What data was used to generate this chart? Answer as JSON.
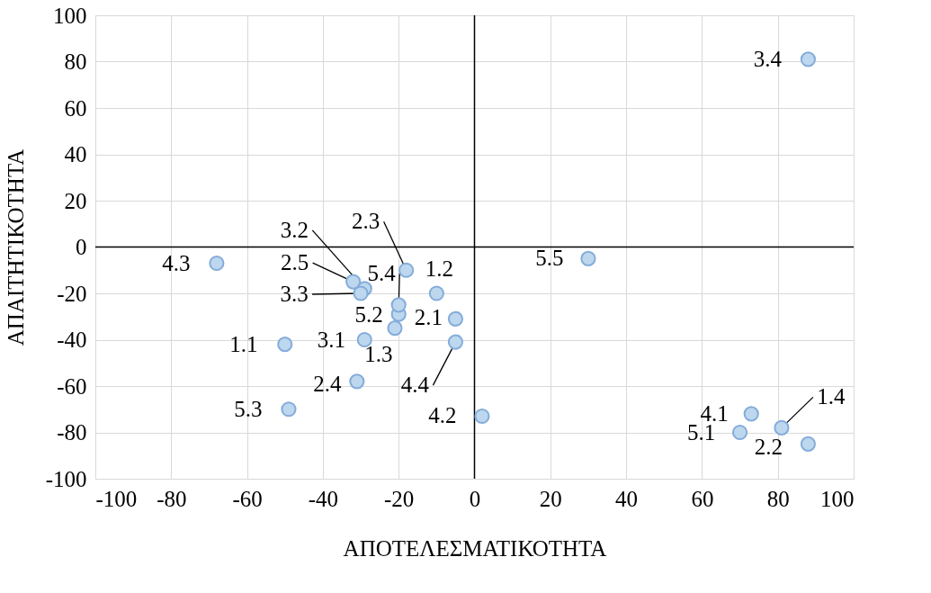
{
  "chart_data": {
    "type": "scatter",
    "xlabel": "ΑΠΟΤΕΛΕΣΜΑΤΙΚΟΤΗΤΑ",
    "ylabel": "ΑΠΑΙΤΗΤΙΚΟΤΗΤΑ",
    "xlim": [
      -100,
      100
    ],
    "xticks": [
      -100,
      -80,
      -60,
      -40,
      -20,
      0,
      20,
      40,
      60,
      80,
      100
    ],
    "ylim": [
      -100,
      100
    ],
    "yticks": [
      -100,
      -80,
      -60,
      -40,
      -20,
      0,
      20,
      40,
      60,
      80,
      100
    ],
    "grid": true,
    "marker": "circle",
    "series": [
      {
        "color": "#bdd7ee",
        "x": [
          -50,
          -10,
          -21,
          81,
          -5,
          88,
          -18,
          -31,
          -32,
          -29,
          -29,
          -30,
          88,
          73,
          2,
          -68,
          -5,
          70,
          -20,
          -49,
          -20,
          30
        ],
        "values": [
          -42,
          -20,
          -35,
          -78,
          -31,
          -85,
          -10,
          -58,
          -15,
          -40,
          -18,
          -20,
          81,
          -72,
          -73,
          -7,
          -41,
          -80,
          -29,
          -70,
          -25,
          -5
        ]
      }
    ],
    "annotations": [
      {
        "text": "1.1",
        "x": -50,
        "y": -42
      },
      {
        "text": "1.2",
        "x": -10,
        "y": -20
      },
      {
        "text": "1.3",
        "x": -21,
        "y": -35
      },
      {
        "text": "1.4",
        "x": 81,
        "y": -78
      },
      {
        "text": "2.1",
        "x": -5,
        "y": -31
      },
      {
        "text": "2.2",
        "x": 88,
        "y": -85
      },
      {
        "text": "2.3",
        "x": -18,
        "y": -10
      },
      {
        "text": "2.4",
        "x": -31,
        "y": -58
      },
      {
        "text": "2.5",
        "x": -32,
        "y": -15
      },
      {
        "text": "3.1",
        "x": -29,
        "y": -40
      },
      {
        "text": "3.2",
        "x": -29,
        "y": -18
      },
      {
        "text": "3.3",
        "x": -30,
        "y": -20
      },
      {
        "text": "3.4",
        "x": 88,
        "y": 81
      },
      {
        "text": "4.1",
        "x": 73,
        "y": -72
      },
      {
        "text": "4.2",
        "x": 2,
        "y": -73
      },
      {
        "text": "4.3",
        "x": -68,
        "y": -7
      },
      {
        "text": "4.4",
        "x": -5,
        "y": -41
      },
      {
        "text": "5.1",
        "x": 70,
        "y": -80
      },
      {
        "text": "5.2",
        "x": -20,
        "y": -29
      },
      {
        "text": "5.3",
        "x": -49,
        "y": -70
      },
      {
        "text": "5.4",
        "x": -20,
        "y": -25
      },
      {
        "text": "5.5",
        "x": 30,
        "y": -5
      }
    ]
  }
}
